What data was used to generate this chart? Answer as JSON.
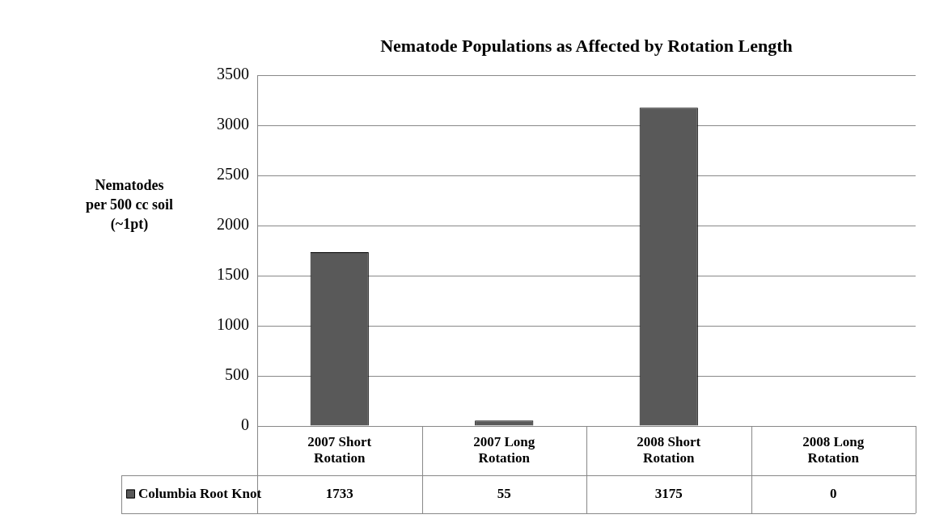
{
  "chart_data": {
    "type": "bar",
    "title": "Nematode Populations as Affected by Rotation Length",
    "ylabel": "Nematodes per 500 cc soil (~1pt)",
    "categories": [
      "2007 Short Rotation",
      "2007 Long Rotation",
      "2008 Short Rotation",
      "2008 Long Rotation"
    ],
    "series": [
      {
        "name": "Columbia Root Knot",
        "color": "#595959",
        "values": [
          1733,
          55,
          3175,
          0
        ]
      }
    ],
    "ylim": [
      0,
      3500
    ],
    "yticks": [
      0,
      500,
      1000,
      1500,
      2000,
      2500,
      3000,
      3500
    ],
    "grid": "y",
    "legend": "bottom left",
    "data_labels": true
  }
}
